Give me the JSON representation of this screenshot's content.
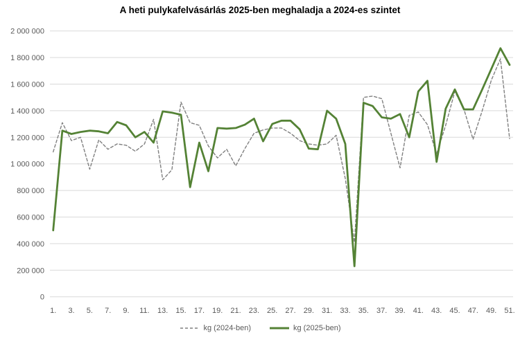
{
  "title": "A heti pulykafelvásárlás 2025-ben meghaladja a 2024-es szintet",
  "chart_data": {
    "type": "line",
    "xlabel": "",
    "ylabel": "",
    "x": [
      1,
      2,
      3,
      4,
      5,
      6,
      7,
      8,
      9,
      10,
      11,
      12,
      13,
      14,
      15,
      16,
      17,
      18,
      19,
      20,
      21,
      22,
      23,
      24,
      25,
      26,
      27,
      28,
      29,
      30,
      31,
      32,
      33,
      34,
      35,
      36,
      37,
      38,
      39,
      40,
      41,
      42,
      43,
      44,
      45,
      46,
      47,
      48,
      49,
      50,
      51
    ],
    "x_ticks": [
      "1.",
      "3.",
      "5.",
      "7.",
      "9.",
      "11.",
      "13.",
      "15.",
      "17.",
      "19.",
      "21.",
      "23.",
      "25.",
      "27.",
      "29.",
      "31.",
      "33.",
      "35.",
      "37.",
      "39.",
      "41.",
      "43.",
      "45.",
      "47.",
      "49.",
      "51."
    ],
    "y_ticks": [
      "0",
      "200 000",
      "400 000",
      "600 000",
      "800 000",
      "1 000 000",
      "1 200 000",
      "1 400 000",
      "1 600 000",
      "1 800 000",
      "2 000 000"
    ],
    "ylim": [
      0,
      2000000
    ],
    "grid": "horizontal",
    "legend_position": "bottom",
    "series": [
      {
        "name": "kg (2024-ben)",
        "style": "dashed",
        "color": "#7f7f7f",
        "values": [
          1090000,
          1310000,
          1175000,
          1200000,
          960000,
          1180000,
          1110000,
          1150000,
          1140000,
          1095000,
          1150000,
          1335000,
          880000,
          955000,
          1465000,
          1310000,
          1290000,
          1135000,
          1045000,
          1110000,
          985000,
          1115000,
          1230000,
          1255000,
          1270000,
          1270000,
          1230000,
          1175000,
          1150000,
          1140000,
          1150000,
          1215000,
          890000,
          410000,
          1500000,
          1510000,
          1490000,
          1230000,
          970000,
          1365000,
          1390000,
          1295000,
          1075000,
          1290000,
          1545000,
          1410000,
          1185000,
          1400000,
          1630000,
          1790000,
          1190000
        ]
      },
      {
        "name": "kg (2025-ben)",
        "style": "solid",
        "color": "#548235",
        "values": [
          500000,
          1250000,
          1225000,
          1240000,
          1250000,
          1245000,
          1230000,
          1315000,
          1290000,
          1200000,
          1240000,
          1160000,
          1395000,
          1385000,
          1370000,
          825000,
          1160000,
          945000,
          1270000,
          1265000,
          1270000,
          1295000,
          1340000,
          1170000,
          1300000,
          1325000,
          1325000,
          1260000,
          1115000,
          1110000,
          1400000,
          1340000,
          1150000,
          230000,
          1460000,
          1435000,
          1350000,
          1340000,
          1375000,
          1200000,
          1545000,
          1625000,
          1015000,
          1415000,
          1560000,
          1410000,
          1410000,
          1560000,
          1715000,
          1870000,
          1745000
        ]
      }
    ]
  },
  "colors": {
    "background": "#ffffff",
    "gridline": "#d9d9d9",
    "tick_label": "#595959",
    "title": "#000000"
  }
}
